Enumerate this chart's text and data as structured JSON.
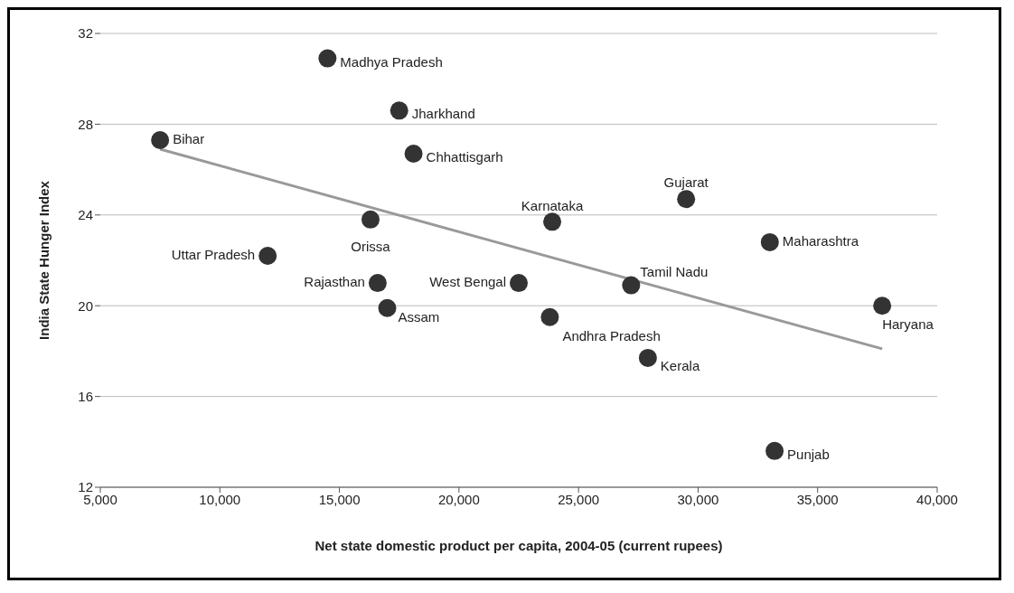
{
  "chart_data": {
    "type": "scatter",
    "xlabel": "Net state domestic product per capita, 2004-05 (current rupees)",
    "ylabel": "India State Hunger Index",
    "xlim": [
      5000,
      40000
    ],
    "xticks": [
      {
        "value": 5000,
        "label": "5,000"
      },
      {
        "value": 10000,
        "label": "10,000"
      },
      {
        "value": 15000,
        "label": "15,000"
      },
      {
        "value": 20000,
        "label": "20,000"
      },
      {
        "value": 25000,
        "label": "25,000"
      },
      {
        "value": 30000,
        "label": "30,000"
      },
      {
        "value": 35000,
        "label": "35,000"
      },
      {
        "value": 40000,
        "label": "40,000"
      }
    ],
    "ylim": [
      12,
      32
    ],
    "yticks": [
      12,
      16,
      20,
      24,
      28,
      32
    ],
    "grid": "y",
    "series": [
      {
        "type": "scatter",
        "color": "#333333",
        "marker": "circle",
        "x": [
          14500,
          17500,
          7500,
          18100,
          29500,
          16300,
          23900,
          12000,
          16600,
          22500,
          27200,
          33000,
          17000,
          23800,
          37700,
          27900,
          33200
        ],
        "values": [
          30.9,
          28.6,
          27.3,
          26.7,
          24.7,
          23.8,
          23.7,
          22.2,
          21.0,
          21.0,
          20.9,
          22.8,
          19.9,
          19.5,
          20.0,
          17.7,
          13.6
        ]
      },
      {
        "type": "line",
        "color": "#999999",
        "marker": "none",
        "x": [
          7500,
          37700
        ],
        "values": [
          26.9,
          18.1
        ]
      }
    ],
    "annotations": [
      {
        "text": "Madhya Pradesh",
        "x": 14500,
        "y": 30.9
      },
      {
        "text": "Jharkhand",
        "x": 17500,
        "y": 28.6
      },
      {
        "text": "Bihar",
        "x": 7500,
        "y": 27.3
      },
      {
        "text": "Chhattisgarh",
        "x": 18100,
        "y": 26.7
      },
      {
        "text": "Gujarat",
        "x": 29500,
        "y": 24.7
      },
      {
        "text": "Orissa",
        "x": 16300,
        "y": 23.8
      },
      {
        "text": "Karnataka",
        "x": 23900,
        "y": 23.7
      },
      {
        "text": "Uttar Pradesh",
        "x": 12000,
        "y": 22.2
      },
      {
        "text": "Rajasthan",
        "x": 16600,
        "y": 21.0
      },
      {
        "text": "West Bengal",
        "x": 22500,
        "y": 21.0
      },
      {
        "text": "Tamil Nadu",
        "x": 27200,
        "y": 20.9
      },
      {
        "text": "Maharashtra",
        "x": 33000,
        "y": 22.8
      },
      {
        "text": "Assam",
        "x": 17000,
        "y": 19.9
      },
      {
        "text": "Andhra Pradesh",
        "x": 23800,
        "y": 19.5
      },
      {
        "text": "Haryana",
        "x": 37700,
        "y": 20.0
      },
      {
        "text": "Kerala",
        "x": 27900,
        "y": 17.7
      },
      {
        "text": "Punjab",
        "x": 33200,
        "y": 13.6
      }
    ]
  }
}
